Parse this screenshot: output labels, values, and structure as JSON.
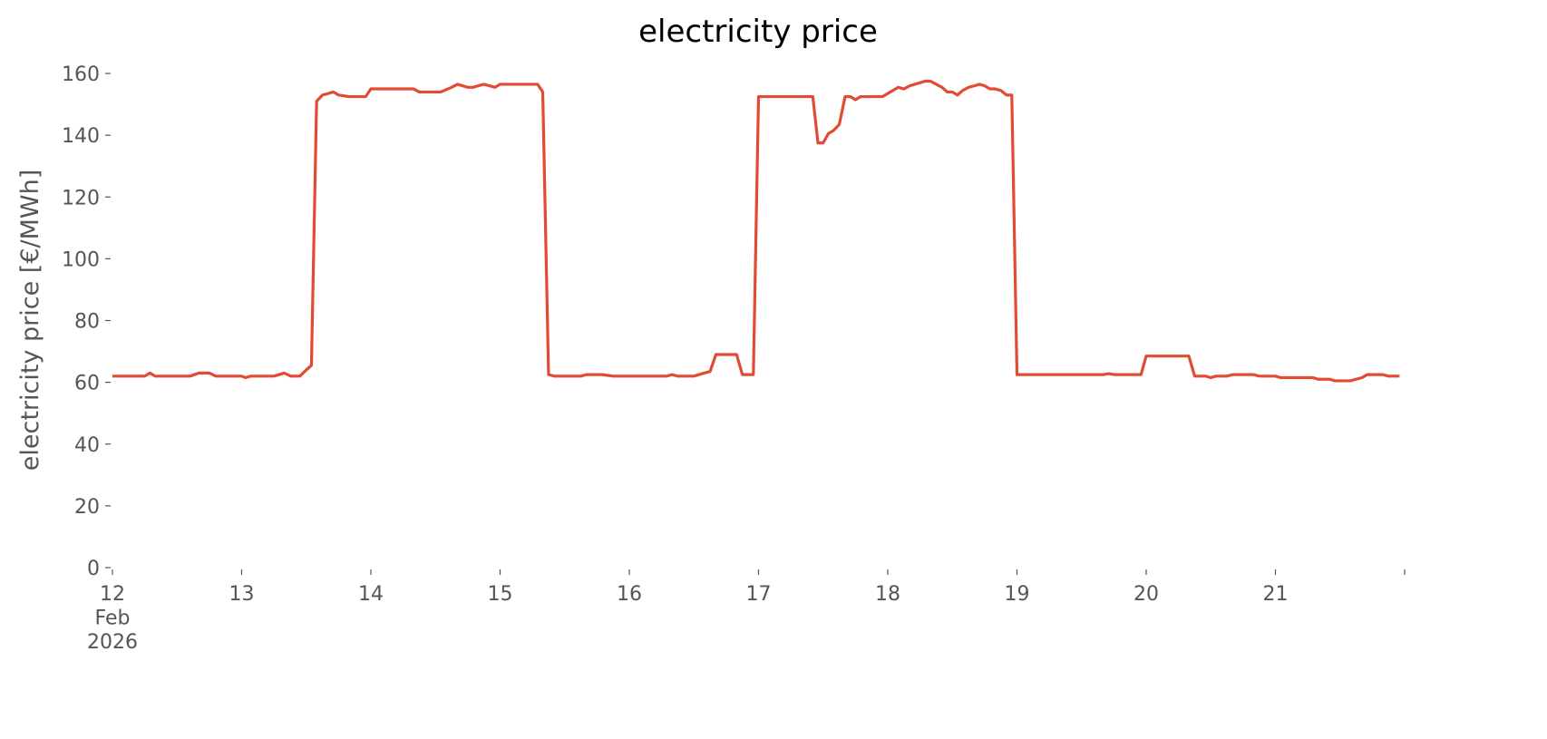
{
  "chart_data": {
    "type": "line",
    "title": "electricity price",
    "ylabel": "electricity price [€/MWh]",
    "x": [
      12.0,
      12.25,
      12.29,
      12.33,
      12.6,
      12.67,
      12.75,
      12.8,
      13.0,
      13.03,
      13.07,
      13.25,
      13.33,
      13.38,
      13.45,
      13.5,
      13.54,
      13.58,
      13.625,
      13.67,
      13.71,
      13.75,
      13.83,
      13.96,
      14.0,
      14.33,
      14.375,
      14.54,
      14.625,
      14.67,
      14.75,
      14.79,
      14.83,
      14.875,
      14.96,
      15.0,
      15.29,
      15.33,
      15.375,
      15.42,
      15.625,
      15.67,
      15.79,
      15.875,
      16.29,
      16.33,
      16.375,
      16.5,
      16.58,
      16.625,
      16.67,
      16.71,
      16.75,
      16.83,
      16.875,
      16.96,
      17.0,
      17.42,
      17.46,
      17.5,
      17.54,
      17.58,
      17.625,
      17.67,
      17.71,
      17.75,
      17.79,
      17.96,
      18.04,
      18.08,
      18.125,
      18.17,
      18.21,
      18.29,
      18.33,
      18.42,
      18.46,
      18.5,
      18.54,
      18.58,
      18.625,
      18.67,
      18.71,
      18.75,
      18.79,
      18.83,
      18.875,
      18.92,
      18.96,
      19.0,
      19.67,
      19.71,
      19.75,
      19.96,
      20.0,
      20.33,
      20.375,
      20.46,
      20.5,
      20.54,
      20.625,
      20.67,
      20.83,
      20.875,
      21.0,
      21.04,
      21.25,
      21.29,
      21.33,
      21.42,
      21.46,
      21.58,
      21.67,
      21.71,
      21.83,
      21.875,
      21.96
    ],
    "series": [
      {
        "color": "#e24a33",
        "values": [
          62,
          62,
          63,
          62,
          62,
          63,
          63,
          62,
          62,
          61.5,
          62,
          62,
          63,
          62,
          62,
          64,
          65.5,
          151,
          153,
          153.5,
          154,
          153,
          152.5,
          152.5,
          155,
          155,
          154,
          154,
          155.5,
          156.5,
          155.5,
          155.5,
          156,
          156.5,
          155.5,
          156.5,
          156.5,
          154,
          62.5,
          62,
          62,
          62.5,
          62.5,
          62,
          62,
          62.5,
          62,
          62,
          63,
          63.5,
          69,
          69,
          69,
          69,
          62.5,
          62.5,
          152.5,
          152.5,
          137.5,
          137.5,
          140.5,
          141.5,
          143.5,
          152.5,
          152.5,
          151.5,
          152.5,
          152.5,
          154.5,
          155.5,
          155,
          156,
          156.5,
          157.5,
          157.5,
          155.5,
          154,
          154,
          153,
          154.5,
          155.5,
          156,
          156.5,
          156,
          155,
          155,
          154.5,
          153,
          153,
          62.5,
          62.5,
          62.8,
          62.5,
          62.5,
          68.5,
          68.5,
          62,
          62,
          61.5,
          62,
          62,
          62.5,
          62.5,
          62,
          62,
          61.5,
          61.5,
          61.5,
          61,
          61,
          60.5,
          60.5,
          61.5,
          62.5,
          62.5,
          62,
          62
        ]
      }
    ],
    "xlim": [
      12,
      22
    ],
    "xticks": [
      {
        "value": 12,
        "label": "12\nFeb\n2026"
      },
      13,
      14,
      15,
      16,
      17,
      18,
      19,
      20,
      21,
      {
        "value": 22,
        "label": null
      }
    ],
    "ylim": [
      0,
      160
    ],
    "yticks": [
      0,
      20,
      40,
      60,
      80,
      100,
      120,
      140,
      160
    ]
  }
}
